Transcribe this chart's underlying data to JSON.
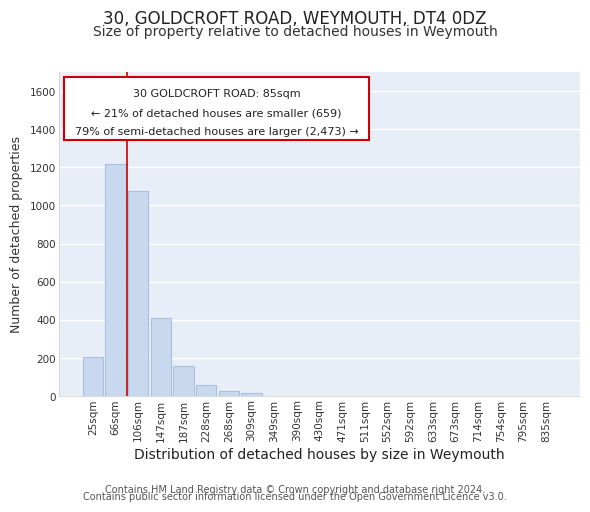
{
  "title": "30, GOLDCROFT ROAD, WEYMOUTH, DT4 0DZ",
  "subtitle": "Size of property relative to detached houses in Weymouth",
  "xlabel": "Distribution of detached houses by size in Weymouth",
  "ylabel": "Number of detached properties",
  "bar_labels": [
    "25sqm",
    "66sqm",
    "106sqm",
    "147sqm",
    "187sqm",
    "228sqm",
    "268sqm",
    "309sqm",
    "349sqm",
    "390sqm",
    "430sqm",
    "471sqm",
    "511sqm",
    "552sqm",
    "592sqm",
    "633sqm",
    "673sqm",
    "714sqm",
    "754sqm",
    "795sqm",
    "835sqm"
  ],
  "bar_values": [
    205,
    1220,
    1075,
    410,
    160,
    58,
    25,
    18,
    0,
    0,
    0,
    0,
    0,
    0,
    0,
    0,
    0,
    0,
    0,
    0,
    0
  ],
  "bar_color": "#c8d9ef",
  "bar_edge_color": "#a8c0e0",
  "highlight_line_color": "#cc0000",
  "ylim": [
    0,
    1700
  ],
  "yticks": [
    0,
    200,
    400,
    600,
    800,
    1000,
    1200,
    1400,
    1600
  ],
  "annotation_title": "30 GOLDCROFT ROAD: 85sqm",
  "annotation_line1": "← 21% of detached houses are smaller (659)",
  "annotation_line2": "79% of semi-detached houses are larger (2,473) →",
  "footer_line1": "Contains HM Land Registry data © Crown copyright and database right 2024.",
  "footer_line2": "Contains public sector information licensed under the Open Government Licence v3.0.",
  "bg_color": "#ffffff",
  "plot_bg_color": "#e8eef8",
  "grid_color": "#ffffff",
  "title_fontsize": 12,
  "subtitle_fontsize": 10,
  "xlabel_fontsize": 10,
  "ylabel_fontsize": 9,
  "tick_fontsize": 7.5,
  "footer_fontsize": 7,
  "ann_fontsize": 8
}
